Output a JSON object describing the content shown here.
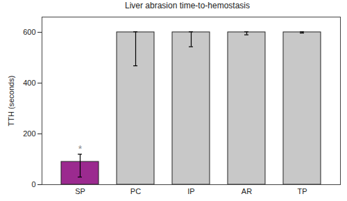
{
  "chart_data": {
    "type": "bar",
    "title": "Liver abrasion time-to-hemostasis",
    "y_label": "TTH (seconds)",
    "categories": [
      "SP",
      "PC",
      "IP",
      "AR",
      "TP"
    ],
    "values": [
      90,
      600,
      600,
      600,
      600
    ],
    "error_low": [
      30,
      468,
      543,
      590,
      597
    ],
    "error_high": [
      120,
      602,
      602,
      602,
      602
    ],
    "colors": [
      "#9b2a8f",
      "#c8c8c8",
      "#c8c8c8",
      "#c8c8c8",
      "#c8c8c8"
    ],
    "annotations": [
      {
        "text": "*",
        "x": "SP",
        "y": 150
      }
    ],
    "ylim": [
      0,
      660
    ],
    "yticks": [
      0,
      200,
      400,
      600
    ],
    "grid": false
  }
}
